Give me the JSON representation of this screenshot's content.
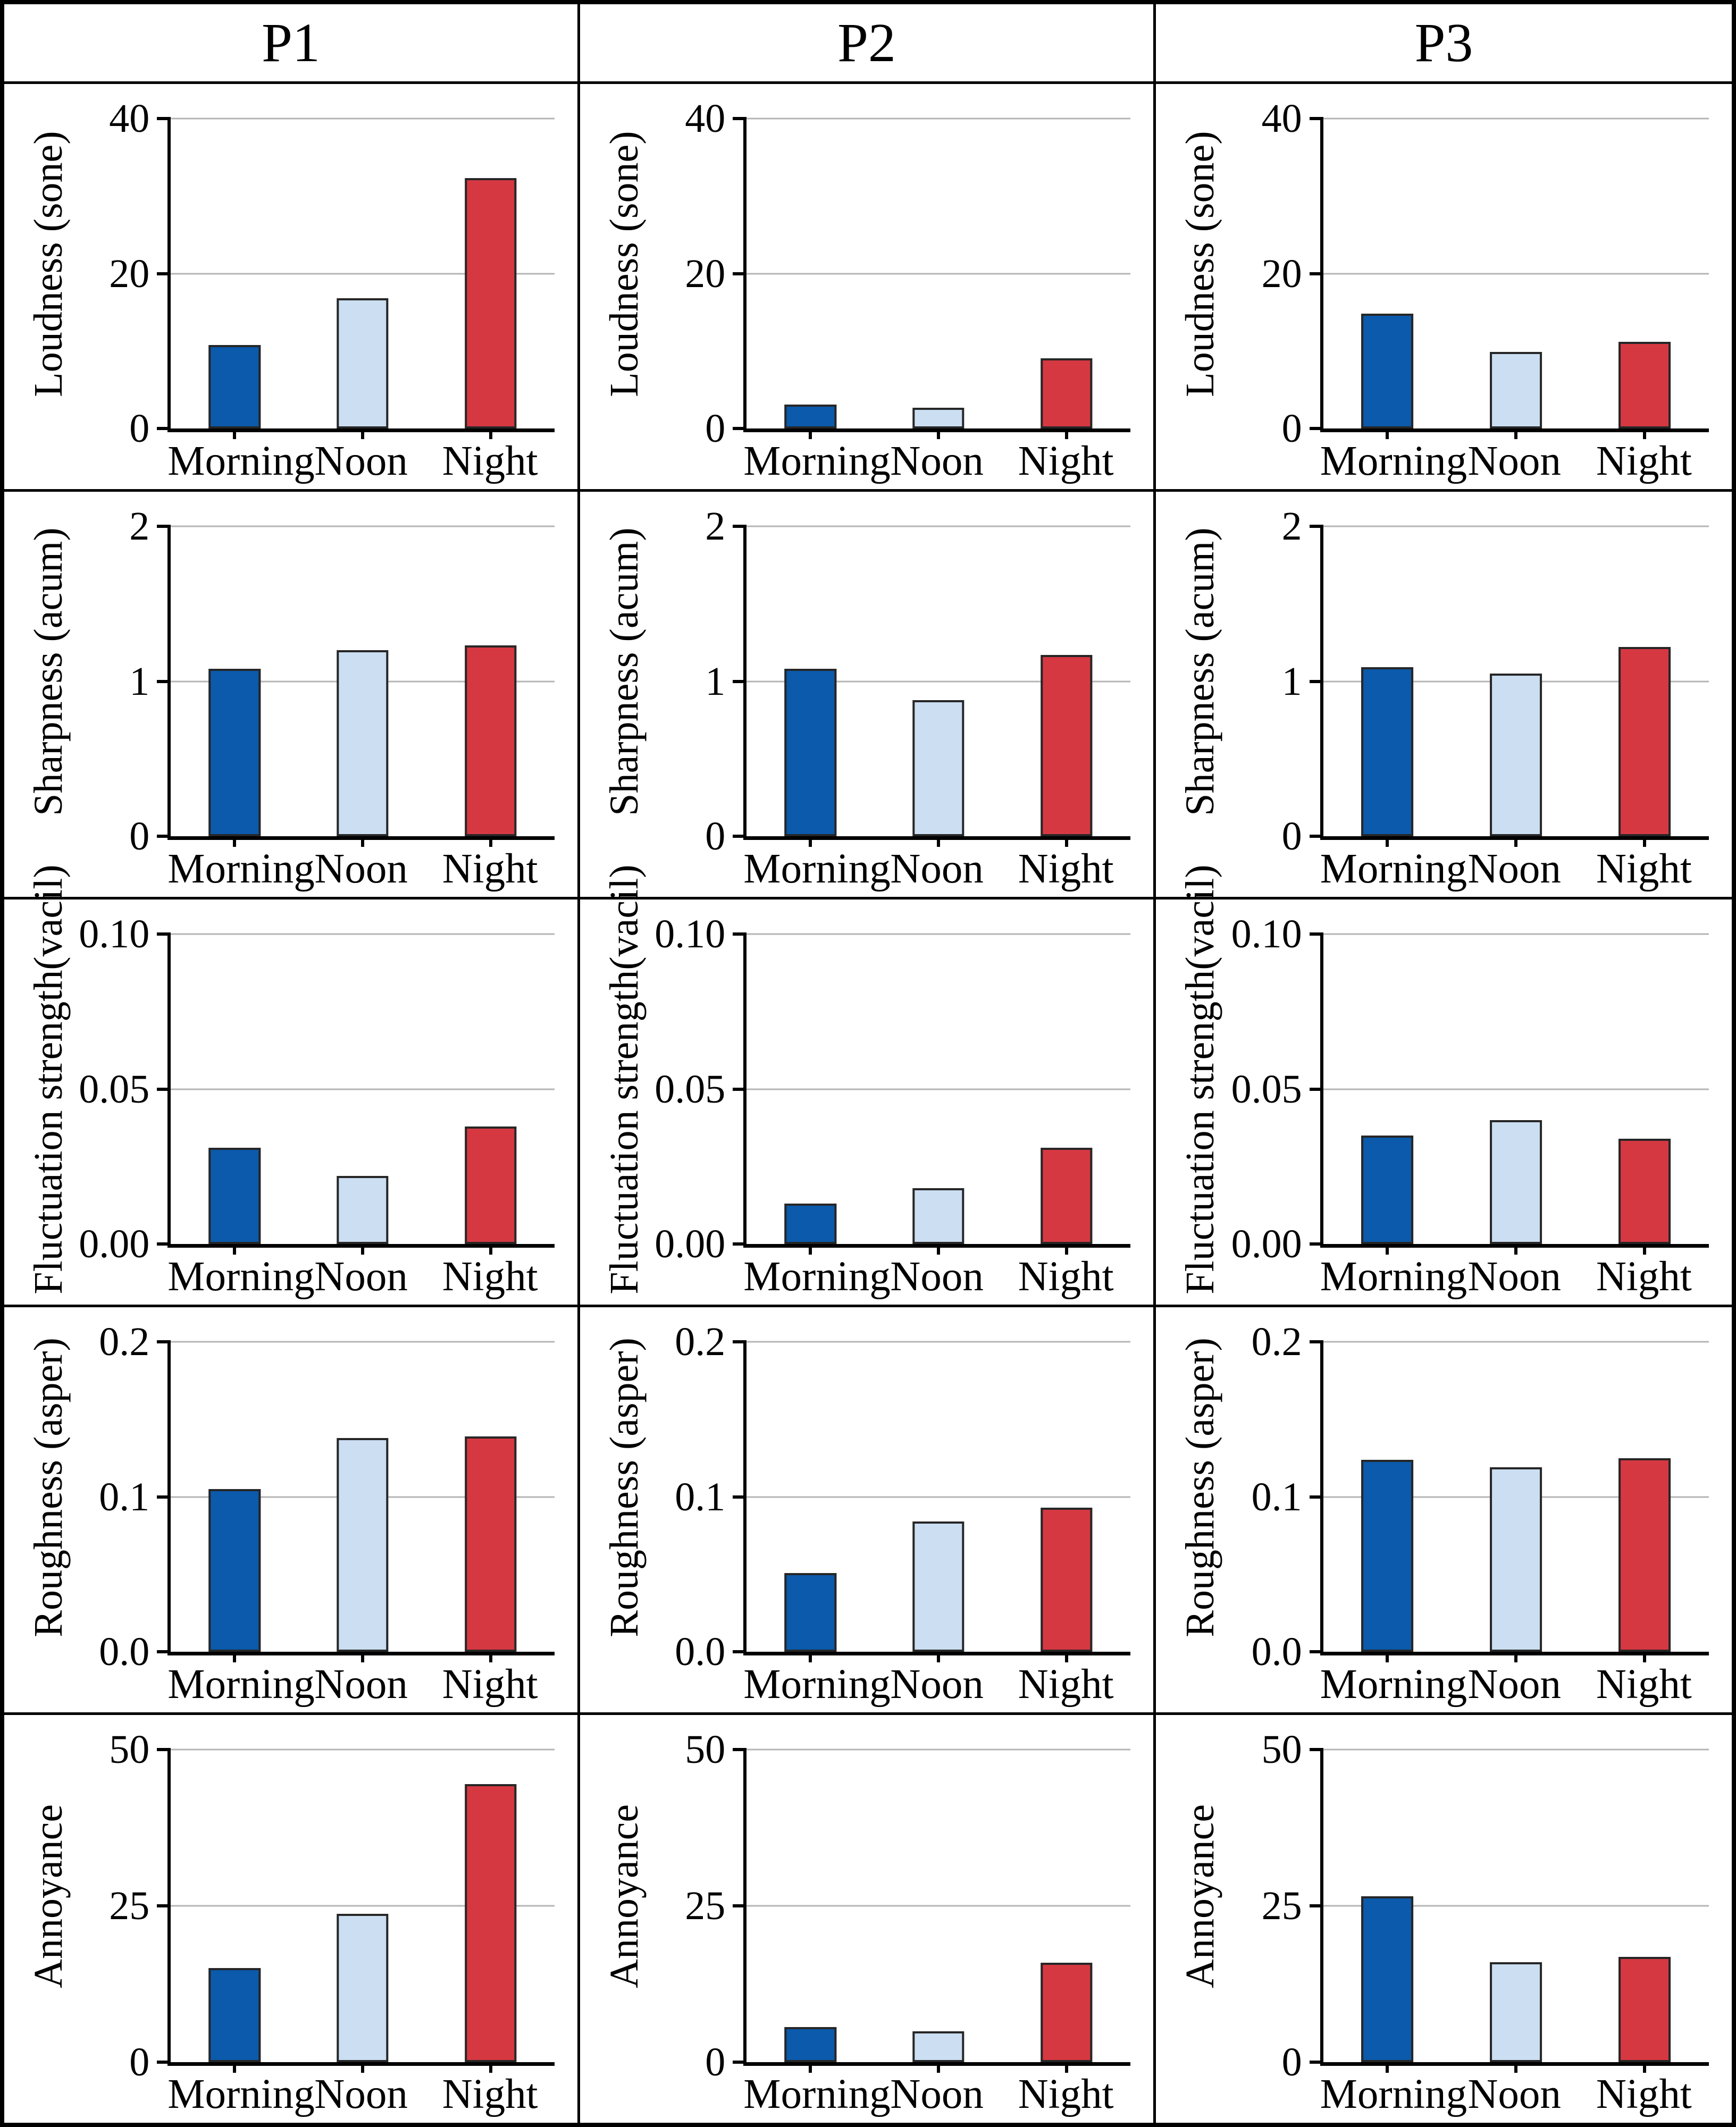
{
  "header": {
    "columns": [
      "P1",
      "P2",
      "P3"
    ]
  },
  "categories": [
    "Morning",
    "Noon",
    "Night"
  ],
  "series_colors": [
    "#0b5aab",
    "#cbdef2",
    "#d63842"
  ],
  "style_colors": {
    "bar_border": "#262626",
    "gridline": "#b5b5b5",
    "axis": "#000000"
  },
  "chart_data": [
    {
      "type": "bar",
      "panel": "P1",
      "ylabel": "Loudness (sone)",
      "ylim": [
        0,
        40
      ],
      "yticks": [
        0,
        20,
        40
      ],
      "ytick_labels": [
        "0",
        "20",
        "40"
      ],
      "categories": [
        "Morning",
        "Noon",
        "Night"
      ],
      "values": [
        10.8,
        16.8,
        32.3
      ]
    },
    {
      "type": "bar",
      "panel": "P2",
      "ylabel": "Loudness (sone)",
      "ylim": [
        0,
        40
      ],
      "yticks": [
        0,
        20,
        40
      ],
      "ytick_labels": [
        "0",
        "20",
        "40"
      ],
      "categories": [
        "Morning",
        "Noon",
        "Night"
      ],
      "values": [
        3.1,
        2.7,
        9.1
      ]
    },
    {
      "type": "bar",
      "panel": "P3",
      "ylabel": "Loudness (sone)",
      "ylim": [
        0,
        40
      ],
      "yticks": [
        0,
        20,
        40
      ],
      "ytick_labels": [
        "0",
        "20",
        "40"
      ],
      "categories": [
        "Morning",
        "Noon",
        "Night"
      ],
      "values": [
        14.8,
        9.9,
        11.2
      ]
    },
    {
      "type": "bar",
      "panel": "P1",
      "ylabel": "Sharpness (acum)",
      "ylim": [
        0,
        2
      ],
      "yticks": [
        0,
        1,
        2
      ],
      "ytick_labels": [
        "0",
        "1",
        "2"
      ],
      "categories": [
        "Morning",
        "Noon",
        "Night"
      ],
      "values": [
        1.08,
        1.2,
        1.23
      ]
    },
    {
      "type": "bar",
      "panel": "P2",
      "ylabel": "Sharpness (acum)",
      "ylim": [
        0,
        2
      ],
      "yticks": [
        0,
        1,
        2
      ],
      "ytick_labels": [
        "0",
        "1",
        "2"
      ],
      "categories": [
        "Morning",
        "Noon",
        "Night"
      ],
      "values": [
        1.08,
        0.88,
        1.17
      ]
    },
    {
      "type": "bar",
      "panel": "P3",
      "ylabel": "Sharpness (acum)",
      "ylim": [
        0,
        2
      ],
      "yticks": [
        0,
        1,
        2
      ],
      "ytick_labels": [
        "0",
        "1",
        "2"
      ],
      "categories": [
        "Morning",
        "Noon",
        "Night"
      ],
      "values": [
        1.09,
        1.05,
        1.22
      ]
    },
    {
      "type": "bar",
      "panel": "P1",
      "ylabel": "Fluctuation strength(vacil)",
      "ylim": [
        0,
        0.1
      ],
      "yticks": [
        0,
        0.05,
        0.1
      ],
      "ytick_labels": [
        "0.00",
        "0.05",
        "0.10"
      ],
      "categories": [
        "Morning",
        "Noon",
        "Night"
      ],
      "values": [
        0.031,
        0.022,
        0.038
      ]
    },
    {
      "type": "bar",
      "panel": "P2",
      "ylabel": "Fluctuation strength(vacil)",
      "ylim": [
        0,
        0.1
      ],
      "yticks": [
        0,
        0.05,
        0.1
      ],
      "ytick_labels": [
        "0.00",
        "0.05",
        "0.10"
      ],
      "categories": [
        "Morning",
        "Noon",
        "Night"
      ],
      "values": [
        0.013,
        0.018,
        0.031
      ]
    },
    {
      "type": "bar",
      "panel": "P3",
      "ylabel": "Fluctuation strength(vacil)",
      "ylim": [
        0,
        0.1
      ],
      "yticks": [
        0,
        0.05,
        0.1
      ],
      "ytick_labels": [
        "0.00",
        "0.05",
        "0.10"
      ],
      "categories": [
        "Morning",
        "Noon",
        "Night"
      ],
      "values": [
        0.035,
        0.04,
        0.034
      ]
    },
    {
      "type": "bar",
      "panel": "P1",
      "ylabel": "Roughness (asper)",
      "ylim": [
        0,
        0.2
      ],
      "yticks": [
        0,
        0.1,
        0.2
      ],
      "ytick_labels": [
        "0.0",
        "0.1",
        "0.2"
      ],
      "categories": [
        "Morning",
        "Noon",
        "Night"
      ],
      "values": [
        0.105,
        0.138,
        0.139
      ]
    },
    {
      "type": "bar",
      "panel": "P2",
      "ylabel": "Roughness (asper)",
      "ylim": [
        0,
        0.2
      ],
      "yticks": [
        0,
        0.1,
        0.2
      ],
      "ytick_labels": [
        "0.0",
        "0.1",
        "0.2"
      ],
      "categories": [
        "Morning",
        "Noon",
        "Night"
      ],
      "values": [
        0.051,
        0.084,
        0.093
      ]
    },
    {
      "type": "bar",
      "panel": "P3",
      "ylabel": "Roughness (asper)",
      "ylim": [
        0,
        0.2
      ],
      "yticks": [
        0,
        0.1,
        0.2
      ],
      "ytick_labels": [
        "0.0",
        "0.1",
        "0.2"
      ],
      "categories": [
        "Morning",
        "Noon",
        "Night"
      ],
      "values": [
        0.124,
        0.119,
        0.125
      ]
    },
    {
      "type": "bar",
      "panel": "P1",
      "ylabel": "Annoyance",
      "ylim": [
        0,
        50
      ],
      "yticks": [
        0,
        25,
        50
      ],
      "ytick_labels": [
        "0",
        "25",
        "50"
      ],
      "categories": [
        "Morning",
        "Noon",
        "Night"
      ],
      "values": [
        15.0,
        23.7,
        44.5
      ]
    },
    {
      "type": "bar",
      "panel": "P2",
      "ylabel": "Annoyance",
      "ylim": [
        0,
        50
      ],
      "yticks": [
        0,
        25,
        50
      ],
      "ytick_labels": [
        "0",
        "25",
        "50"
      ],
      "categories": [
        "Morning",
        "Noon",
        "Night"
      ],
      "values": [
        5.6,
        4.9,
        15.9
      ]
    },
    {
      "type": "bar",
      "panel": "P3",
      "ylabel": "Annoyance",
      "ylim": [
        0,
        50
      ],
      "yticks": [
        0,
        25,
        50
      ],
      "ytick_labels": [
        "0",
        "25",
        "50"
      ],
      "categories": [
        "Morning",
        "Noon",
        "Night"
      ],
      "values": [
        26.5,
        16.0,
        16.8
      ]
    }
  ]
}
